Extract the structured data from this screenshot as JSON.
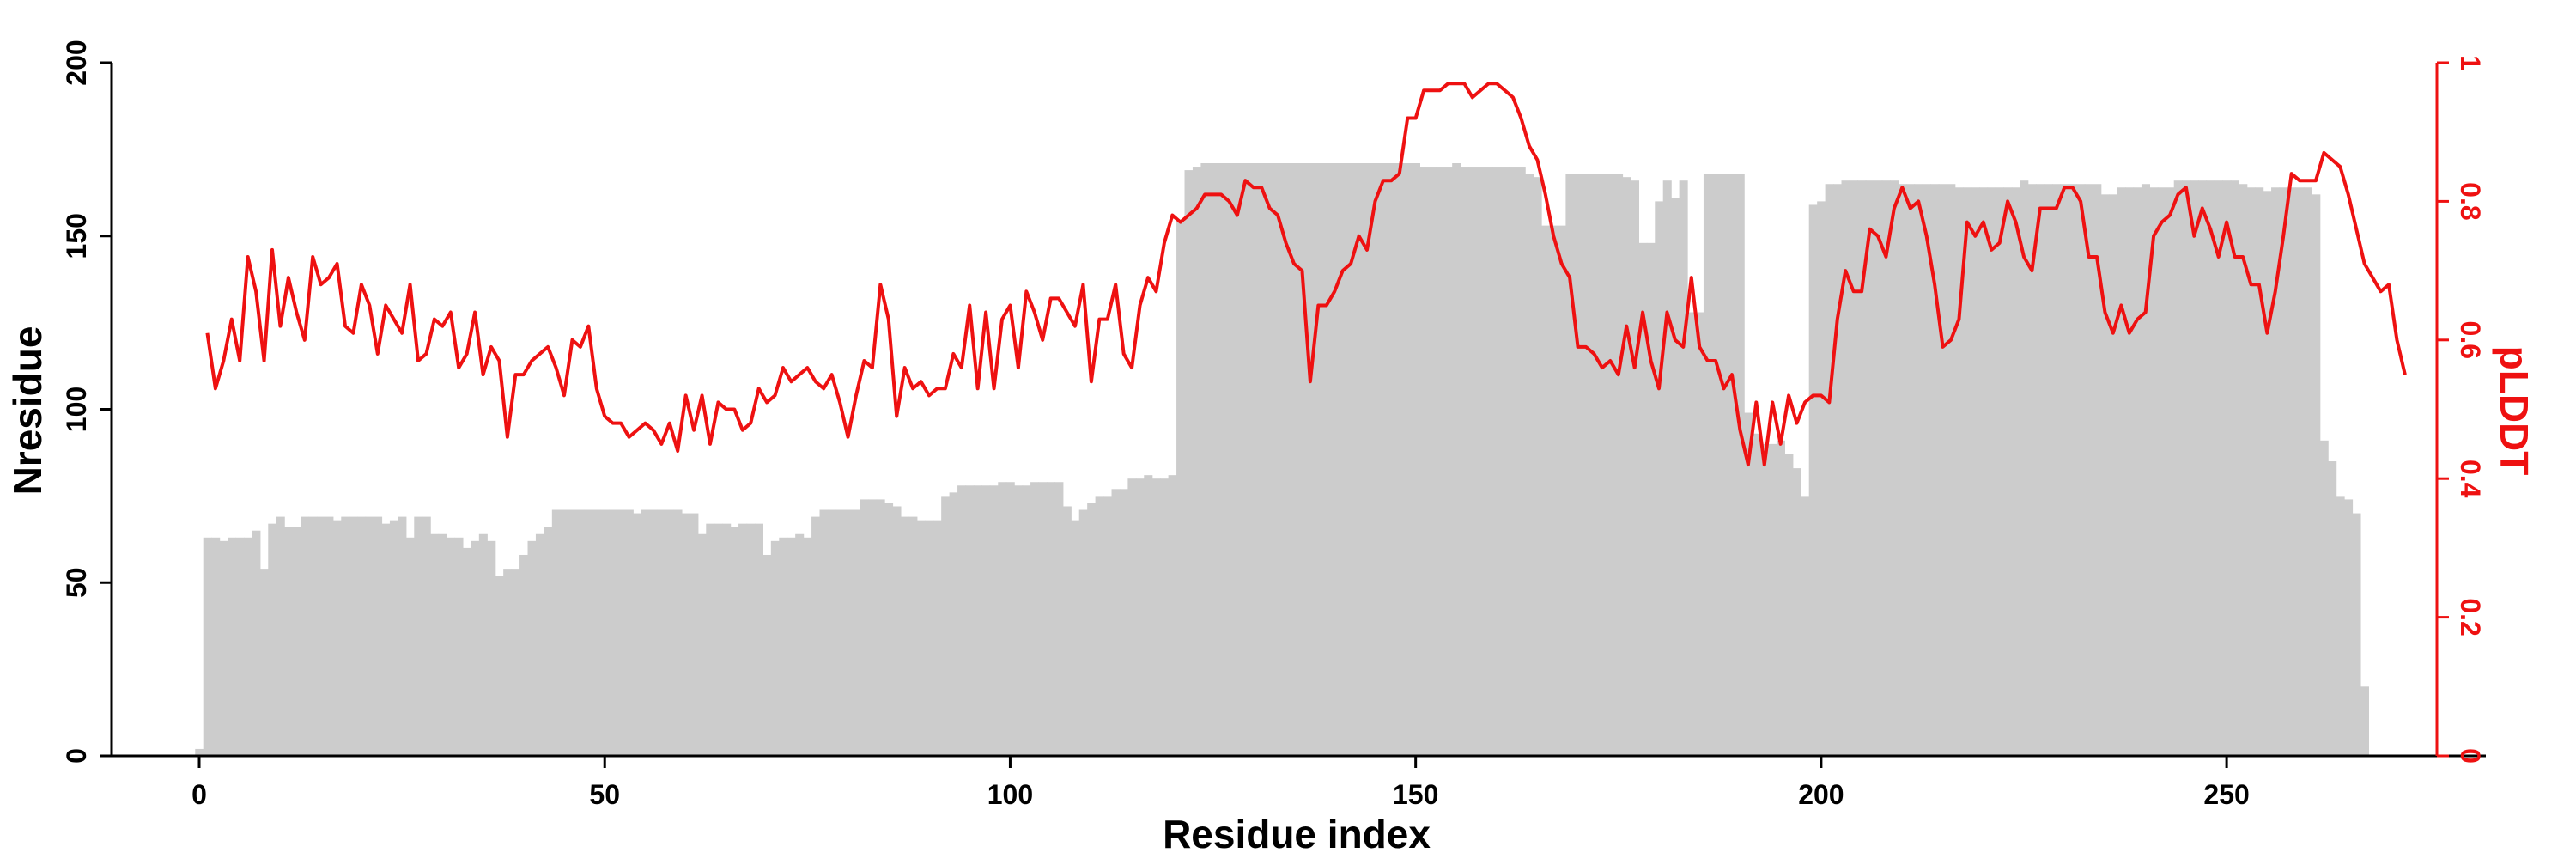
{
  "chart_data": {
    "type": "bar",
    "xlabel": "Residue index",
    "ylabel": "Nresidue",
    "y2label": "pLDDT",
    "xlim": [
      -10,
      282
    ],
    "ylim": [
      0,
      200
    ],
    "y2lim": [
      0,
      1
    ],
    "x_ticks": [
      0,
      50,
      100,
      150,
      200,
      250
    ],
    "y_ticks": [
      0,
      50,
      100,
      150,
      200
    ],
    "y2_ticks": [
      0,
      0.2,
      0.4,
      0.6,
      0.8,
      1
    ],
    "x_tick_labels": [
      "0",
      "50",
      "100",
      "150",
      "200",
      "250"
    ],
    "y_tick_labels": [
      "0",
      "50",
      "100",
      "150",
      "200"
    ],
    "y2_tick_labels": [
      "0",
      "0.2",
      "0.4",
      "0.6",
      "0.8",
      "1"
    ],
    "colors": {
      "bars": "#cccccc",
      "line": "#ee1111",
      "axis": "#000000",
      "y2axis": "#ee1111"
    },
    "series": [
      {
        "kind": "bar",
        "values": [
          2,
          63,
          63,
          62,
          63,
          63,
          63,
          65,
          54,
          67,
          69,
          66,
          66,
          69,
          69,
          69,
          69,
          68,
          69,
          69,
          69,
          69,
          69,
          67,
          68,
          69,
          63,
          69,
          69,
          64,
          64,
          63,
          63,
          60,
          62,
          64,
          62,
          52,
          54,
          54,
          58,
          62,
          64,
          66,
          71,
          71,
          71,
          71,
          71,
          71,
          71,
          71,
          71,
          71,
          70,
          71,
          71,
          71,
          71,
          71,
          70,
          70,
          64,
          67,
          67,
          67,
          66,
          67,
          67,
          67,
          58,
          62,
          63,
          63,
          64,
          63,
          69,
          71,
          71,
          71,
          71,
          71,
          74,
          74,
          74,
          73,
          72,
          69,
          69,
          68,
          68,
          68,
          75,
          76,
          78,
          78,
          78,
          78,
          78,
          79,
          79,
          78,
          78,
          79,
          79,
          79,
          79,
          72,
          68,
          71,
          73,
          75,
          75,
          77,
          77,
          80,
          80,
          81,
          80,
          80,
          81,
          154,
          169,
          170,
          171,
          171,
          171,
          171,
          171,
          171,
          171,
          171,
          171,
          171,
          171,
          171,
          171,
          171,
          171,
          171,
          171,
          171,
          171,
          171,
          171,
          171,
          171,
          171,
          171,
          171,
          171,
          170,
          170,
          170,
          170,
          171,
          170,
          170,
          170,
          170,
          170,
          170,
          170,
          170,
          168,
          167,
          153,
          153,
          153,
          168,
          168,
          168,
          168,
          168,
          168,
          168,
          167,
          166,
          148,
          148,
          160,
          166,
          161,
          166,
          128,
          128,
          168,
          168,
          168,
          168,
          168,
          99,
          93,
          90,
          90,
          91,
          87,
          83,
          75,
          159,
          160,
          165,
          165,
          166,
          166,
          166,
          166,
          166,
          166,
          166,
          165,
          165,
          165,
          165,
          165,
          165,
          165,
          164,
          164,
          164,
          164,
          164,
          164,
          164,
          164,
          166,
          165,
          165,
          165,
          165,
          165,
          165,
          165,
          165,
          165,
          162,
          162,
          164,
          164,
          164,
          165,
          164,
          164,
          164,
          166,
          166,
          166,
          166,
          166,
          166,
          166,
          166,
          165,
          164,
          164,
          163,
          164,
          164,
          164,
          164,
          164,
          162,
          91,
          85,
          75,
          74,
          70,
          20
        ]
      },
      {
        "kind": "line",
        "values": [
          0.61,
          0.53,
          0.57,
          0.63,
          0.57,
          0.72,
          0.67,
          0.57,
          0.73,
          0.62,
          0.69,
          0.64,
          0.6,
          0.72,
          0.68,
          0.69,
          0.71,
          0.62,
          0.61,
          0.68,
          0.65,
          0.58,
          0.65,
          0.63,
          0.61,
          0.68,
          0.57,
          0.58,
          0.63,
          0.62,
          0.64,
          0.56,
          0.58,
          0.64,
          0.55,
          0.59,
          0.57,
          0.46,
          0.55,
          0.55,
          0.57,
          0.58,
          0.59,
          0.56,
          0.52,
          0.6,
          0.59,
          0.62,
          0.53,
          0.49,
          0.48,
          0.48,
          0.46,
          0.47,
          0.48,
          0.47,
          0.45,
          0.48,
          0.44,
          0.52,
          0.47,
          0.52,
          0.45,
          0.51,
          0.5,
          0.5,
          0.47,
          0.48,
          0.53,
          0.51,
          0.52,
          0.56,
          0.54,
          0.55,
          0.56,
          0.54,
          0.53,
          0.55,
          0.51,
          0.46,
          0.52,
          0.57,
          0.56,
          0.68,
          0.63,
          0.49,
          0.56,
          0.53,
          0.54,
          0.52,
          0.53,
          0.53,
          0.58,
          0.56,
          0.65,
          0.53,
          0.64,
          0.53,
          0.63,
          0.65,
          0.56,
          0.67,
          0.64,
          0.6,
          0.66,
          0.66,
          0.64,
          0.62,
          0.68,
          0.54,
          0.63,
          0.63,
          0.68,
          0.58,
          0.56,
          0.65,
          0.69,
          0.67,
          0.74,
          0.78,
          0.77,
          0.78,
          0.79,
          0.81,
          0.81,
          0.81,
          0.8,
          0.78,
          0.83,
          0.82,
          0.82,
          0.79,
          0.78,
          0.74,
          0.71,
          0.7,
          0.54,
          0.65,
          0.65,
          0.67,
          0.7,
          0.71,
          0.75,
          0.73,
          0.8,
          0.83,
          0.83,
          0.84,
          0.92,
          0.92,
          0.96,
          0.96,
          0.96,
          0.97,
          0.97,
          0.97,
          0.95,
          0.96,
          0.97,
          0.97,
          0.96,
          0.95,
          0.92,
          0.88,
          0.86,
          0.81,
          0.75,
          0.71,
          0.69,
          0.59,
          0.59,
          0.58,
          0.56,
          0.57,
          0.55,
          0.62,
          0.56,
          0.64,
          0.57,
          0.53,
          0.64,
          0.6,
          0.59,
          0.69,
          0.59,
          0.57,
          0.57,
          0.53,
          0.55,
          0.47,
          0.42,
          0.51,
          0.42,
          0.51,
          0.45,
          0.52,
          0.48,
          0.51,
          0.52,
          0.52,
          0.51,
          0.63,
          0.7,
          0.67,
          0.67,
          0.76,
          0.75,
          0.72,
          0.79,
          0.82,
          0.79,
          0.8,
          0.75,
          0.68,
          0.59,
          0.6,
          0.63,
          0.77,
          0.75,
          0.77,
          0.73,
          0.74,
          0.8,
          0.77,
          0.72,
          0.7,
          0.79,
          0.79,
          0.79,
          0.82,
          0.82,
          0.8,
          0.72,
          0.72,
          0.64,
          0.61,
          0.65,
          0.61,
          0.63,
          0.64,
          0.75,
          0.77,
          0.78,
          0.81,
          0.82,
          0.75,
          0.79,
          0.76,
          0.72,
          0.77,
          0.72,
          0.72,
          0.68,
          0.68,
          0.61,
          0.67,
          0.75,
          0.84,
          0.83,
          0.83,
          0.83,
          0.87,
          0.86,
          0.85,
          0.81,
          0.76,
          0.71,
          0.69,
          0.67,
          0.68,
          0.6,
          0.55
        ]
      }
    ]
  }
}
